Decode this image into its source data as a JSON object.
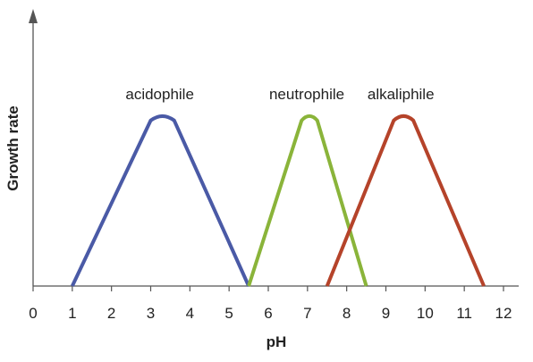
{
  "chart_data": {
    "type": "line",
    "title": "",
    "xlabel": "pH",
    "ylabel": "Growth rate",
    "xlim": [
      0,
      12
    ],
    "xticks": [
      "0",
      "1",
      "2",
      "3",
      "4",
      "5",
      "6",
      "7",
      "8",
      "9",
      "10",
      "11",
      "12"
    ],
    "y_axis_ticks": false,
    "grid": false,
    "legend": "none",
    "series": [
      {
        "name": "acidophile",
        "color": "#4a5aa6",
        "x": [
          1.0,
          3.0,
          3.3,
          3.6,
          5.5
        ],
        "y": [
          0.0,
          0.98,
          1.0,
          0.98,
          0.0
        ]
      },
      {
        "name": "neutrophile",
        "color": "#8ab43a",
        "x": [
          5.5,
          6.85,
          7.05,
          7.25,
          8.5
        ],
        "y": [
          0.0,
          0.98,
          1.0,
          0.98,
          0.0
        ]
      },
      {
        "name": "alkaliphile",
        "color": "#b5432a",
        "x": [
          7.5,
          9.2,
          9.45,
          9.7,
          11.5
        ],
        "y": [
          0.0,
          0.98,
          1.0,
          0.98,
          0.0
        ]
      }
    ]
  }
}
